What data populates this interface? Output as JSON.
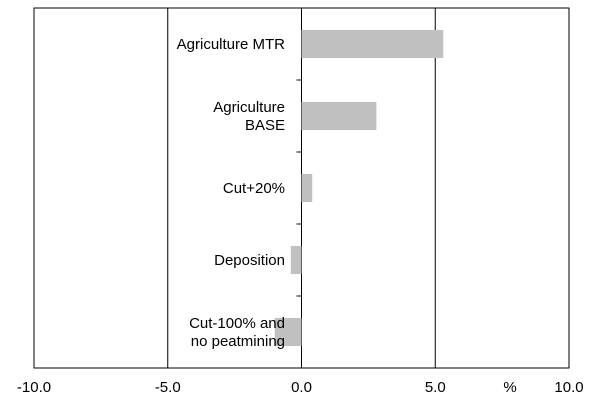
{
  "chart_data": {
    "type": "bar",
    "orientation": "horizontal",
    "categories": [
      "Agriculture MTR",
      "Agriculture\nBASE",
      "Cut+20%",
      "Deposition",
      "Cut-100% and\nno peatmining"
    ],
    "values": [
      5.3,
      2.8,
      0.4,
      -0.4,
      -1.0
    ],
    "color": "#c0c0c0",
    "xlabel": "%",
    "xlim": [
      -10,
      10
    ],
    "xticks": [
      {
        "value": -10,
        "label": "-10.0"
      },
      {
        "value": -5,
        "label": "-5.0"
      },
      {
        "value": 0,
        "label": "0.0"
      },
      {
        "value": 5,
        "label": "5.0"
      },
      {
        "value": 10,
        "label": "10.0"
      }
    ],
    "grid": true
  }
}
